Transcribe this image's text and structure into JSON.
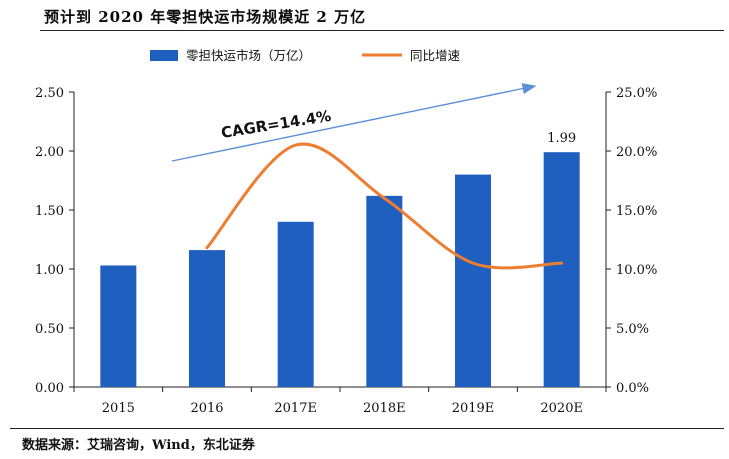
{
  "title": "预计到 2020 年零担快运市场规模近 2 万亿",
  "source": "数据来源：艾瑞咨询，Wind，东北证券",
  "chart_data": {
    "type": "bar",
    "categories": [
      "2015",
      "2016",
      "2017E",
      "2018E",
      "2019E",
      "2020E"
    ],
    "series": [
      {
        "name": "零担快运市场（万亿）",
        "type": "bar",
        "axis": "left",
        "color": "#1f5fbf",
        "values": [
          1.03,
          1.16,
          1.4,
          1.62,
          1.8,
          1.99
        ]
      },
      {
        "name": "同比增速",
        "type": "line",
        "axis": "right",
        "color": "#ed7d31",
        "values": [
          null,
          0.118,
          0.205,
          0.16,
          0.105,
          0.105
        ]
      }
    ],
    "data_labels": [
      {
        "category": "2020E",
        "text": "1.99"
      }
    ],
    "left_axis": {
      "min": 0,
      "max": 2.5,
      "ticks": [
        "0.00",
        "0.50",
        "1.00",
        "1.50",
        "2.00",
        "2.50"
      ]
    },
    "right_axis": {
      "min": 0,
      "max": 0.25,
      "ticks": [
        "0.0%",
        "5.0%",
        "10.0%",
        "15.0%",
        "20.0%",
        "25.0%"
      ]
    },
    "annotation": {
      "text": "CAGR=14.4%",
      "arrow_color": "#5b8fd6"
    },
    "legend_position": "top"
  }
}
